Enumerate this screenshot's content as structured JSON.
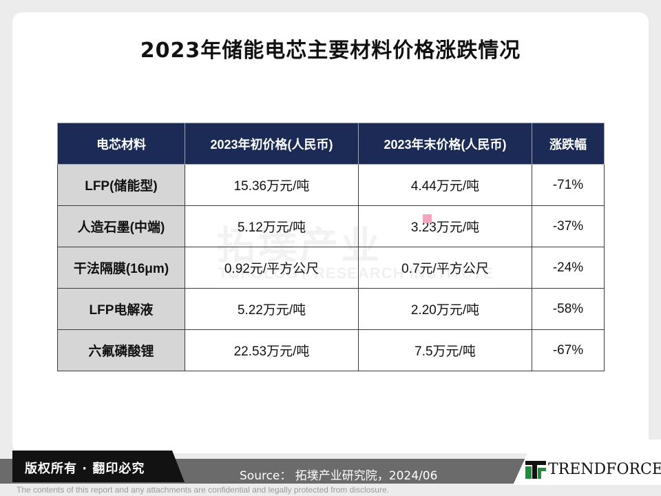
{
  "title": "2023年储能电芯主要材料价格涨跌情况",
  "watermark": {
    "cn": "拓墣产业",
    "en": "TOPOLOGY RESEARCH INSTITUTE"
  },
  "table": {
    "headers": [
      "电芯材料",
      "2023年初价格(人民币)",
      "2023年末价格(人民币)",
      "涨跌幅"
    ],
    "rows": [
      {
        "material": "LFP(储能型)",
        "start": "15.36万元/吨",
        "end": "4.44万元/吨",
        "change": "-71%"
      },
      {
        "material": "人造石墨(中端)",
        "start": "5.12万元/吨",
        "end": "3.23万元/吨",
        "change": "-37%"
      },
      {
        "material": "干法隔膜(16μm)",
        "start": "0.92元/平方公尺",
        "end": "0.7元/平方公尺",
        "change": "-24%"
      },
      {
        "material": "LFP电解液",
        "start": "5.22万元/吨",
        "end": "2.20万元/吨",
        "change": "-58%"
      },
      {
        "material": "六氟磷酸锂",
        "start": "22.53万元/吨",
        "end": "7.5万元/吨",
        "change": "-67%"
      }
    ]
  },
  "footer": {
    "rights": "版权所有 · 翻印必究",
    "source": "Source： 拓墣产业研究院，2024/06",
    "logo": "TRENDFORCE",
    "disclaimer": "The contents of this report and any attachments are confidential and legally protected from disclosure."
  },
  "colors": {
    "header_bg": "#1b2b55",
    "material_cell_bg": "#d6d6d6",
    "footer_grey": "#6b6b6b",
    "logo_green": "#1e8c3a"
  }
}
